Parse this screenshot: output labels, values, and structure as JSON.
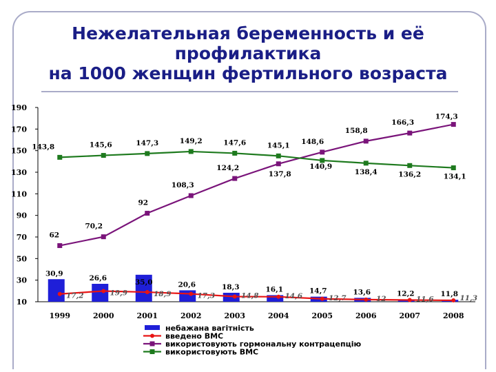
{
  "title": {
    "line1": "Нежелательная беременность и её",
    "line2": "профилактика",
    "line3": "на 1000 женщин фертильного возраста"
  },
  "colors": {
    "title": "#1a1e86",
    "bars": "#1f1fd8",
    "red": "#e81414",
    "purple": "#7a147a",
    "green": "#1e7a1e",
    "frame": "#a9abc8"
  },
  "chart_data": {
    "type": "bar",
    "categories": [
      "1999",
      "2000",
      "2001",
      "2002",
      "2003",
      "2004",
      "2005",
      "2006",
      "2007",
      "2008"
    ],
    "ylim": [
      10,
      190
    ],
    "yticks": [
      10,
      30,
      50,
      70,
      90,
      110,
      130,
      150,
      170,
      190
    ],
    "grid": false,
    "legend_position": "bottom",
    "series": [
      {
        "name": "небажана вагітність",
        "type": "bar",
        "values": [
          30.9,
          26.6,
          35.0,
          20.6,
          18.3,
          16.1,
          14.7,
          13.6,
          12.2,
          11.8
        ],
        "labels": [
          "30,9",
          "26,6",
          "35,0",
          "20,6",
          "18,3",
          "16,1",
          "14,7",
          "13,6",
          "12,2",
          "11,8"
        ]
      },
      {
        "name": "введено ВМС",
        "type": "line",
        "values": [
          17.2,
          19.9,
          18.9,
          17.3,
          14.8,
          14.6,
          12.7,
          12.0,
          11.6,
          11.3
        ],
        "labels": [
          "17,2",
          "19,9",
          "18,9",
          "17,3",
          "14,8",
          "14,6",
          "12,7",
          "12",
          "11,6",
          "11,3"
        ]
      },
      {
        "name": "використовують гормональну контрацепцію",
        "type": "line",
        "values": [
          62,
          70.2,
          92,
          108.3,
          124.2,
          137.8,
          148.6,
          158.8,
          166.3,
          174.3
        ],
        "labels": [
          "62",
          "70,2",
          "92",
          "108,3",
          "124,2",
          "137,8",
          "148,6",
          "158,8",
          "166,3",
          "174,3"
        ]
      },
      {
        "name": "використовують ВМС",
        "type": "line",
        "values": [
          143.8,
          145.6,
          147.3,
          149.2,
          147.6,
          145.1,
          140.9,
          138.4,
          136.2,
          134.1
        ],
        "labels": [
          "143,8",
          "145,6",
          "147,3",
          "149,2",
          "147,6",
          "145,1",
          "140,9",
          "138,4",
          "136,2",
          "134,1"
        ]
      }
    ]
  }
}
